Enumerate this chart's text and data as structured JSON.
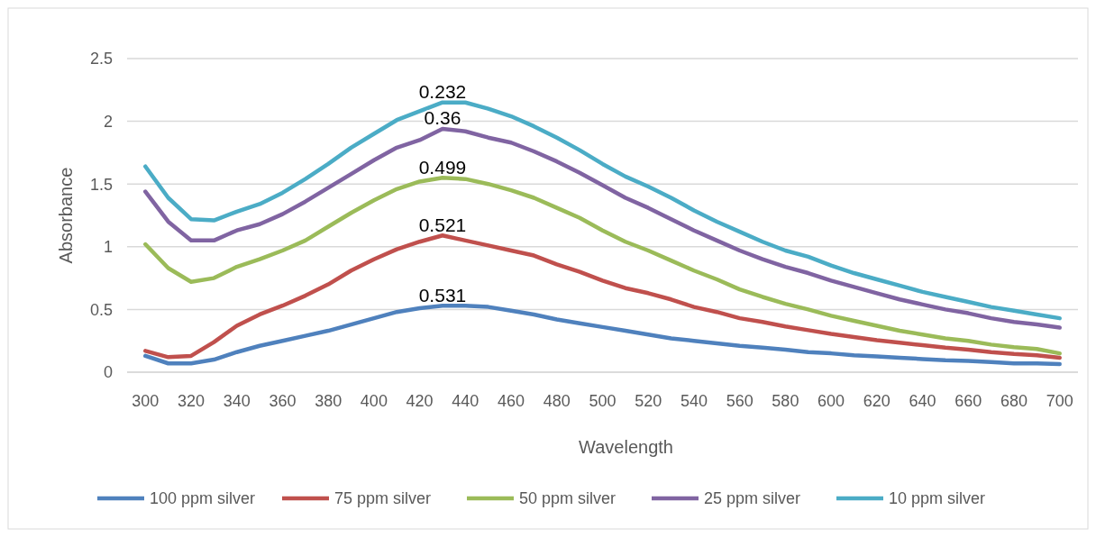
{
  "chart_data": {
    "type": "line",
    "xlabel": "Wavelength",
    "ylabel": "Absorbance",
    "x": [
      300,
      310,
      320,
      330,
      340,
      350,
      360,
      370,
      380,
      390,
      400,
      410,
      420,
      430,
      440,
      450,
      460,
      470,
      480,
      490,
      500,
      510,
      520,
      530,
      540,
      550,
      560,
      570,
      580,
      590,
      600,
      610,
      620,
      630,
      640,
      650,
      660,
      670,
      680,
      690,
      700
    ],
    "xlim": [
      292,
      708
    ],
    "xticks": [
      300,
      320,
      340,
      360,
      380,
      400,
      420,
      440,
      460,
      480,
      500,
      520,
      540,
      560,
      580,
      600,
      620,
      640,
      660,
      680,
      700
    ],
    "ylim": [
      0,
      2.5
    ],
    "yticks": [
      0,
      0.5,
      1,
      1.5,
      2,
      2.5
    ],
    "grid": "y",
    "legend": "bottom",
    "marker": "none",
    "line_style": "solid",
    "series": [
      {
        "name": "100 ppm silver",
        "color": "#4f81bd",
        "values": [
          0.13,
          0.07,
          0.07,
          0.1,
          0.16,
          0.21,
          0.25,
          0.29,
          0.33,
          0.38,
          0.43,
          0.48,
          0.51,
          0.53,
          0.53,
          0.52,
          0.49,
          0.46,
          0.42,
          0.39,
          0.36,
          0.33,
          0.3,
          0.27,
          0.25,
          0.23,
          0.21,
          0.195,
          0.18,
          0.16,
          0.15,
          0.135,
          0.125,
          0.115,
          0.105,
          0.095,
          0.09,
          0.08,
          0.07,
          0.07,
          0.065
        ]
      },
      {
        "name": "75 ppm silver",
        "color": "#c0504d",
        "values": [
          0.17,
          0.12,
          0.13,
          0.24,
          0.37,
          0.46,
          0.53,
          0.61,
          0.7,
          0.81,
          0.9,
          0.98,
          1.04,
          1.09,
          1.05,
          1.01,
          0.97,
          0.93,
          0.86,
          0.8,
          0.73,
          0.67,
          0.63,
          0.58,
          0.52,
          0.48,
          0.43,
          0.4,
          0.365,
          0.335,
          0.305,
          0.28,
          0.255,
          0.235,
          0.215,
          0.195,
          0.18,
          0.16,
          0.145,
          0.135,
          0.115
        ]
      },
      {
        "name": "50 ppm silver",
        "color": "#9bbb59",
        "values": [
          1.02,
          0.83,
          0.72,
          0.75,
          0.84,
          0.9,
          0.97,
          1.05,
          1.16,
          1.27,
          1.37,
          1.46,
          1.52,
          1.55,
          1.54,
          1.5,
          1.45,
          1.39,
          1.31,
          1.23,
          1.13,
          1.04,
          0.97,
          0.89,
          0.81,
          0.74,
          0.66,
          0.6,
          0.545,
          0.5,
          0.45,
          0.41,
          0.37,
          0.33,
          0.3,
          0.27,
          0.25,
          0.22,
          0.2,
          0.185,
          0.15
        ]
      },
      {
        "name": "25 ppm silver",
        "color": "#8064a2",
        "values": [
          1.44,
          1.2,
          1.05,
          1.05,
          1.13,
          1.18,
          1.26,
          1.36,
          1.47,
          1.58,
          1.69,
          1.79,
          1.85,
          1.94,
          1.92,
          1.87,
          1.83,
          1.76,
          1.68,
          1.59,
          1.49,
          1.39,
          1.31,
          1.22,
          1.13,
          1.05,
          0.97,
          0.9,
          0.84,
          0.79,
          0.73,
          0.68,
          0.63,
          0.58,
          0.54,
          0.5,
          0.47,
          0.43,
          0.4,
          0.38,
          0.355
        ]
      },
      {
        "name": "10 ppm silver",
        "color": "#4bacc6",
        "values": [
          1.64,
          1.39,
          1.22,
          1.21,
          1.28,
          1.34,
          1.43,
          1.54,
          1.66,
          1.79,
          1.9,
          2.01,
          2.08,
          2.15,
          2.15,
          2.1,
          2.04,
          1.96,
          1.87,
          1.77,
          1.66,
          1.56,
          1.48,
          1.39,
          1.29,
          1.2,
          1.12,
          1.04,
          0.97,
          0.92,
          0.85,
          0.79,
          0.74,
          0.69,
          0.64,
          0.6,
          0.56,
          0.52,
          0.49,
          0.46,
          0.43
        ]
      }
    ],
    "annotations": [
      "0.232",
      "0.36",
      "0.499",
      "0.521",
      "0.531"
    ]
  }
}
